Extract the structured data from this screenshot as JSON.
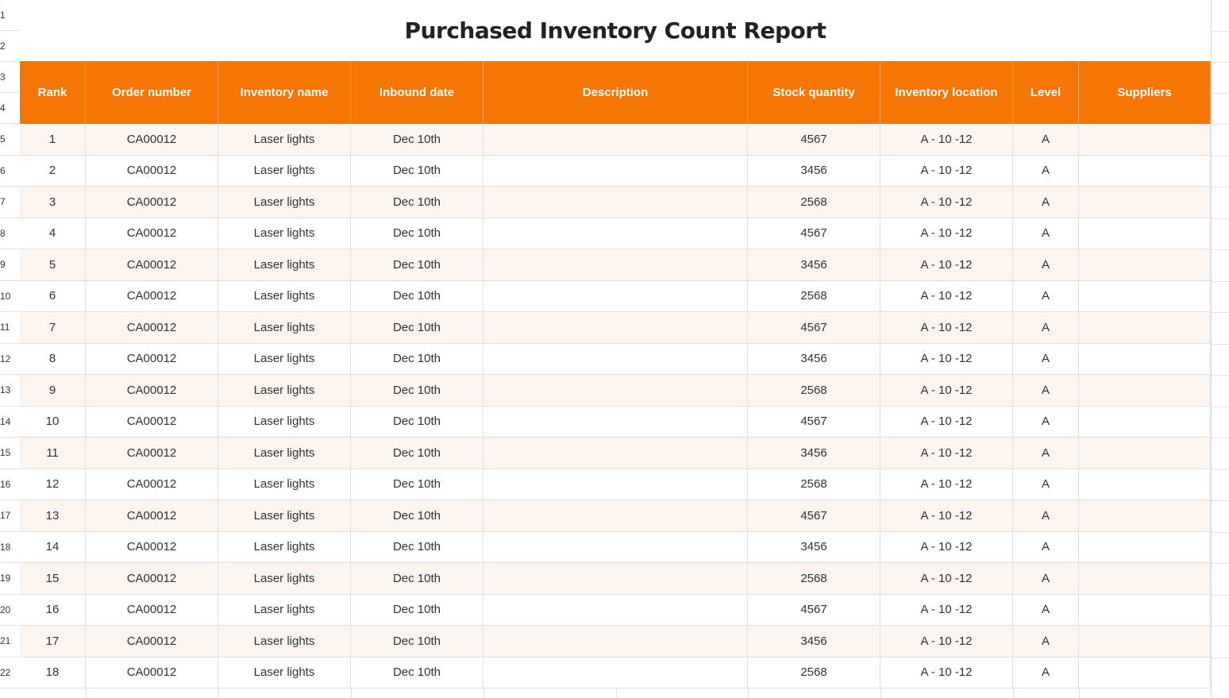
{
  "title": "Purchased Inventory Count Report",
  "row_numbers": [
    "1",
    "2",
    "3",
    "4",
    "5",
    "6",
    "7",
    "8",
    "9",
    "10",
    "11",
    "12",
    "13",
    "14",
    "15",
    "16",
    "17",
    "18",
    "19",
    "20",
    "21",
    "22"
  ],
  "columns": [
    "Rank",
    "Order number",
    "Inventory name",
    "Inbound date",
    "Description",
    "Stock quantity",
    "Inventory location",
    "Level",
    "Suppliers"
  ],
  "rows": [
    [
      "1",
      "CA00012",
      "Laser lights",
      "Dec 10th",
      "",
      "4567",
      "A - 10 -12",
      "A",
      ""
    ],
    [
      "2",
      "CA00012",
      "Laser lights",
      "Dec 10th",
      "",
      "3456",
      "A - 10 -12",
      "A",
      ""
    ],
    [
      "3",
      "CA00012",
      "Laser lights",
      "Dec 10th",
      "",
      "2568",
      "A - 10 -12",
      "A",
      ""
    ],
    [
      "4",
      "CA00012",
      "Laser lights",
      "Dec 10th",
      "",
      "4567",
      "A - 10 -12",
      "A",
      ""
    ],
    [
      "5",
      "CA00012",
      "Laser lights",
      "Dec 10th",
      "",
      "3456",
      "A - 10 -12",
      "A",
      ""
    ],
    [
      "6",
      "CA00012",
      "Laser lights",
      "Dec 10th",
      "",
      "2568",
      "A - 10 -12",
      "A",
      ""
    ],
    [
      "7",
      "CA00012",
      "Laser lights",
      "Dec 10th",
      "",
      "4567",
      "A - 10 -12",
      "A",
      ""
    ],
    [
      "8",
      "CA00012",
      "Laser lights",
      "Dec 10th",
      "",
      "3456",
      "A - 10 -12",
      "A",
      ""
    ],
    [
      "9",
      "CA00012",
      "Laser lights",
      "Dec 10th",
      "",
      "2568",
      "A - 10 -12",
      "A",
      ""
    ],
    [
      "10",
      "CA00012",
      "Laser lights",
      "Dec 10th",
      "",
      "4567",
      "A - 10 -12",
      "A",
      ""
    ],
    [
      "11",
      "CA00012",
      "Laser lights",
      "Dec 10th",
      "",
      "3456",
      "A - 10 -12",
      "A",
      ""
    ],
    [
      "12",
      "CA00012",
      "Laser lights",
      "Dec 10th",
      "",
      "2568",
      "A - 10 -12",
      "A",
      ""
    ],
    [
      "13",
      "CA00012",
      "Laser lights",
      "Dec 10th",
      "",
      "4567",
      "A - 10 -12",
      "A",
      ""
    ],
    [
      "14",
      "CA00012",
      "Laser lights",
      "Dec 10th",
      "",
      "3456",
      "A - 10 -12",
      "A",
      ""
    ],
    [
      "15",
      "CA00012",
      "Laser lights",
      "Dec 10th",
      "",
      "2568",
      "A - 10 -12",
      "A",
      ""
    ],
    [
      "16",
      "CA00012",
      "Laser lights",
      "Dec 10th",
      "",
      "4567",
      "A - 10 -12",
      "A",
      ""
    ],
    [
      "17",
      "CA00012",
      "Laser lights",
      "Dec 10th",
      "",
      "3456",
      "A - 10 -12",
      "A",
      ""
    ],
    [
      "18",
      "CA00012",
      "Laser lights",
      "Dec 10th",
      "",
      "2568",
      "A - 10 -12",
      "A",
      ""
    ]
  ],
  "colors": {
    "header_bg": "#f57505",
    "header_text": "#ffffff",
    "stripe": "#fcf4ee"
  }
}
